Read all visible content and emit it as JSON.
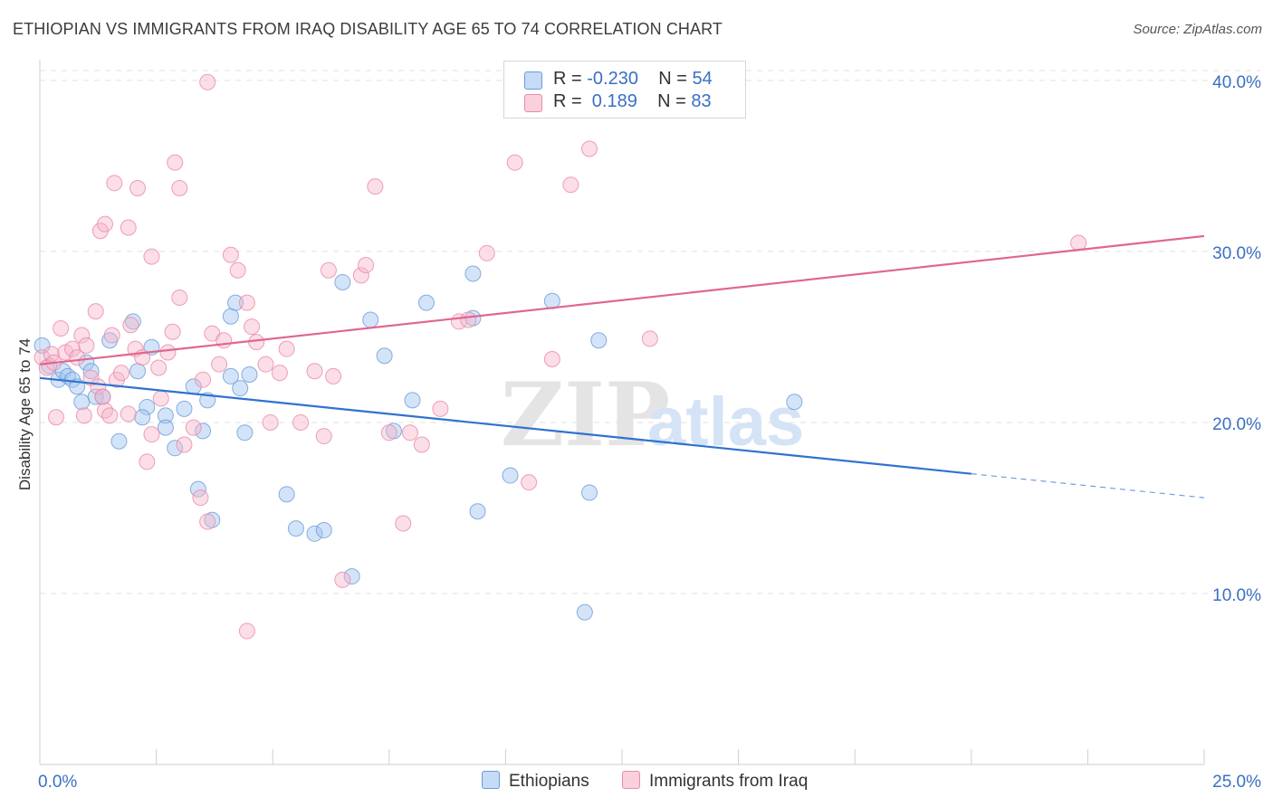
{
  "title": "ETHIOPIAN VS IMMIGRANTS FROM IRAQ DISABILITY AGE 65 TO 74 CORRELATION CHART",
  "source": "Source: ZipAtlas.com",
  "watermark": {
    "zip": "ZIP",
    "atlas": "atlas"
  },
  "legend_top": [
    {
      "r_label": "R = ",
      "r_value": "-0.230",
      "n_label": "N = ",
      "n_value": "54",
      "color": "#9fc3ef"
    },
    {
      "r_label": "R = ",
      "r_value": " 0.189",
      "n_label": "N = ",
      "n_value": "83",
      "color": "#f6b6c9"
    }
  ],
  "chart_data": {
    "type": "scatter",
    "title": "ETHIOPIAN VS IMMIGRANTS FROM IRAQ DISABILITY AGE 65 TO 74 CORRELATION CHART",
    "xlabel": "",
    "ylabel": "Disability Age 65 to 74",
    "xlim": [
      0,
      25
    ],
    "ylim": [
      0,
      41
    ],
    "x_tick_labels": [
      "0.0%",
      "25.0%"
    ],
    "y_ticks": [
      10,
      20,
      30,
      40
    ],
    "y_tick_labels": [
      "10.0%",
      "20.0%",
      "30.0%",
      "40.0%"
    ],
    "grid": true,
    "legend_position": "bottom",
    "series": [
      {
        "name": "Ethiopians",
        "color": "#9fc3ef",
        "edge_color": "#6a9bd8",
        "trend_color": "#2f72d0",
        "trend": {
          "x0": 0.0,
          "y0": 22.6,
          "x1": 20.0,
          "y1": 17.0,
          "dash_to_x": 25.0,
          "dash_to_y": 15.6
        },
        "points": [
          [
            0.05,
            24.5
          ],
          [
            0.2,
            23.3
          ],
          [
            0.4,
            22.5
          ],
          [
            0.5,
            23.0
          ],
          [
            0.6,
            22.7
          ],
          [
            0.7,
            22.5
          ],
          [
            0.8,
            22.1
          ],
          [
            0.9,
            21.2
          ],
          [
            1.0,
            23.5
          ],
          [
            1.1,
            23.0
          ],
          [
            1.2,
            21.5
          ],
          [
            1.35,
            21.5
          ],
          [
            1.5,
            24.8
          ],
          [
            1.7,
            18.9
          ],
          [
            2.0,
            25.9
          ],
          [
            2.1,
            23.0
          ],
          [
            2.3,
            20.9
          ],
          [
            2.2,
            20.3
          ],
          [
            2.7,
            20.4
          ],
          [
            2.7,
            19.7
          ],
          [
            2.9,
            18.5
          ],
          [
            2.4,
            24.4
          ],
          [
            3.4,
            16.1
          ],
          [
            3.1,
            20.8
          ],
          [
            3.3,
            22.1
          ],
          [
            3.5,
            19.5
          ],
          [
            3.6,
            21.3
          ],
          [
            3.7,
            14.3
          ],
          [
            4.1,
            26.2
          ],
          [
            4.2,
            27.0
          ],
          [
            4.1,
            22.7
          ],
          [
            4.3,
            22.0
          ],
          [
            4.4,
            19.4
          ],
          [
            4.5,
            22.8
          ],
          [
            5.3,
            15.8
          ],
          [
            5.5,
            13.8
          ],
          [
            5.9,
            13.5
          ],
          [
            6.1,
            13.7
          ],
          [
            6.5,
            28.2
          ],
          [
            7.1,
            26.0
          ],
          [
            7.4,
            23.9
          ],
          [
            7.6,
            19.5
          ],
          [
            8.0,
            21.3
          ],
          [
            8.3,
            27.0
          ],
          [
            9.3,
            26.1
          ],
          [
            9.3,
            28.7
          ],
          [
            9.4,
            14.8
          ],
          [
            10.1,
            16.9
          ],
          [
            11.0,
            27.1
          ],
          [
            11.8,
            15.9
          ],
          [
            11.7,
            8.9
          ],
          [
            12.0,
            24.8
          ],
          [
            16.2,
            21.2
          ],
          [
            6.7,
            11.0
          ]
        ]
      },
      {
        "name": "Immigrants from Iraq",
        "color": "#f6b6c9",
        "edge_color": "#e98aa7",
        "trend_color": "#e0668f",
        "trend": {
          "x0": 0.0,
          "y0": 23.4,
          "x1": 25.0,
          "y1": 30.9
        },
        "points": [
          [
            0.05,
            23.8
          ],
          [
            0.15,
            23.2
          ],
          [
            0.25,
            24.0
          ],
          [
            0.3,
            23.5
          ],
          [
            0.35,
            20.3
          ],
          [
            0.45,
            25.5
          ],
          [
            0.55,
            24.1
          ],
          [
            0.7,
            24.3
          ],
          [
            0.8,
            23.8
          ],
          [
            0.9,
            25.1
          ],
          [
            0.95,
            20.4
          ],
          [
            1.0,
            24.5
          ],
          [
            1.1,
            22.6
          ],
          [
            1.2,
            26.5
          ],
          [
            1.25,
            22.1
          ],
          [
            1.35,
            21.5
          ],
          [
            1.4,
            20.7
          ],
          [
            1.5,
            20.4
          ],
          [
            1.55,
            25.1
          ],
          [
            1.65,
            22.5
          ],
          [
            1.75,
            22.9
          ],
          [
            1.9,
            20.5
          ],
          [
            1.95,
            25.7
          ],
          [
            2.05,
            24.3
          ],
          [
            2.2,
            23.8
          ],
          [
            2.3,
            17.7
          ],
          [
            2.4,
            19.3
          ],
          [
            2.55,
            23.2
          ],
          [
            2.6,
            21.4
          ],
          [
            2.75,
            24.1
          ],
          [
            2.85,
            25.3
          ],
          [
            3.0,
            27.3
          ],
          [
            3.1,
            18.7
          ],
          [
            3.3,
            19.7
          ],
          [
            3.45,
            15.6
          ],
          [
            3.5,
            22.5
          ],
          [
            3.7,
            25.2
          ],
          [
            3.85,
            23.4
          ],
          [
            3.95,
            24.8
          ],
          [
            4.1,
            29.8
          ],
          [
            4.25,
            28.9
          ],
          [
            4.45,
            27.0
          ],
          [
            4.55,
            25.6
          ],
          [
            4.65,
            24.7
          ],
          [
            4.85,
            23.4
          ],
          [
            4.95,
            20.0
          ],
          [
            5.15,
            22.9
          ],
          [
            5.3,
            24.3
          ],
          [
            5.6,
            20.0
          ],
          [
            5.9,
            23.0
          ],
          [
            6.1,
            19.2
          ],
          [
            6.2,
            28.9
          ],
          [
            6.3,
            22.7
          ],
          [
            6.5,
            10.8
          ],
          [
            6.9,
            28.6
          ],
          [
            7.0,
            29.2
          ],
          [
            7.2,
            33.8
          ],
          [
            7.5,
            19.4
          ],
          [
            7.8,
            14.1
          ],
          [
            7.95,
            19.4
          ],
          [
            8.2,
            18.7
          ],
          [
            8.6,
            20.8
          ],
          [
            9.0,
            25.9
          ],
          [
            9.2,
            26.0
          ],
          [
            9.6,
            29.9
          ],
          [
            10.2,
            35.2
          ],
          [
            10.5,
            16.5
          ],
          [
            11.0,
            23.7
          ],
          [
            11.4,
            33.9
          ],
          [
            11.8,
            36.0
          ],
          [
            13.1,
            24.9
          ],
          [
            1.3,
            31.2
          ],
          [
            1.4,
            31.6
          ],
          [
            1.6,
            34.0
          ],
          [
            1.9,
            31.4
          ],
          [
            2.1,
            33.7
          ],
          [
            2.4,
            29.7
          ],
          [
            2.9,
            35.2
          ],
          [
            3.0,
            33.7
          ],
          [
            3.6,
            39.9
          ],
          [
            3.6,
            14.2
          ],
          [
            4.45,
            7.8
          ],
          [
            22.3,
            30.5
          ]
        ]
      }
    ]
  }
}
